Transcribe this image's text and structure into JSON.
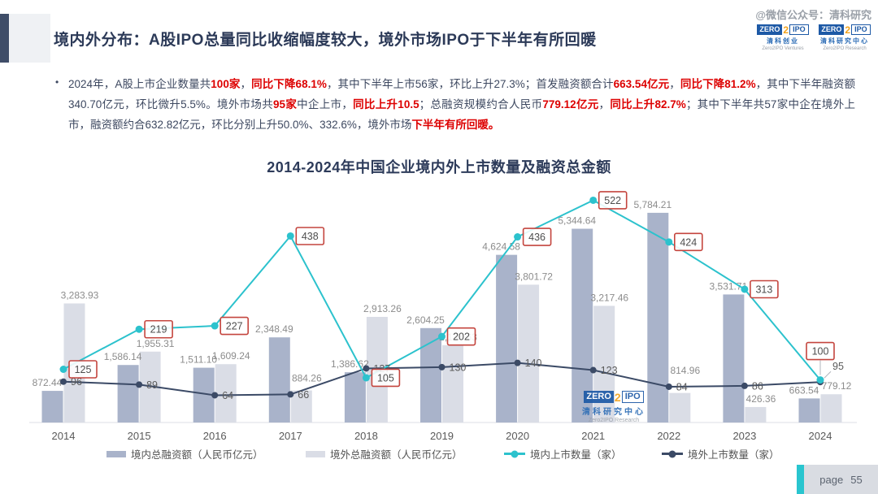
{
  "watermark": "@微信公众号：清科研究",
  "header": {
    "title": "境内外分布：A股IPO总量同比收缩幅度较大，境外市场IPO于下半年有所回暖"
  },
  "logos": {
    "ventures": {
      "zero": "ZERO",
      "two": "2",
      "ipo": "IPO",
      "cn": "清科创业",
      "en": "Zero2IPO Ventures"
    },
    "research": {
      "zero": "ZERO",
      "two": "2",
      "ipo": "IPO",
      "cn": "清科研究中心",
      "en": "Zero2IPO Research"
    }
  },
  "bullet": {
    "marker": "•",
    "segments": [
      {
        "text": "2024年，A股上市企业数量共",
        "red": false
      },
      {
        "text": "100家",
        "red": true
      },
      {
        "text": "，",
        "red": false
      },
      {
        "text": "同比下降68.1%",
        "red": true
      },
      {
        "text": "，其中下半年上市56家，环比上升27.3%；首发融资额合计",
        "red": false
      },
      {
        "text": "663.54亿元",
        "red": true
      },
      {
        "text": "，",
        "red": false
      },
      {
        "text": "同比下降81.2%",
        "red": true
      },
      {
        "text": "，其中下半年融资额340.70亿元，环比微升5.5%。境外市场共",
        "red": false
      },
      {
        "text": "95家",
        "red": true
      },
      {
        "text": "中企上市，",
        "red": false
      },
      {
        "text": "同比上升10.5",
        "red": true
      },
      {
        "text": "；总融资规模约合人民币",
        "red": false
      },
      {
        "text": "779.12亿元",
        "red": true
      },
      {
        "text": "，",
        "red": false
      },
      {
        "text": "同比上升82.7%",
        "red": true
      },
      {
        "text": "；其中下半年共57家中企在境外上市，融资额约合632.82亿元，环比分别上升50.0%、332.6%，境外市场",
        "red": false
      },
      {
        "text": "下半年有所回暖。",
        "red": true
      }
    ]
  },
  "chart_data": {
    "type": "bar+line",
    "title": "2014-2024年中国企业境内外上市数量及融资总金额",
    "categories": [
      "2014",
      "2015",
      "2016",
      "2017",
      "2018",
      "2019",
      "2020",
      "2021",
      "2022",
      "2023",
      "2024"
    ],
    "series": [
      {
        "name": "境内总融资额（人民币亿元）",
        "type": "bar",
        "color": "#a9b3ca",
        "values": [
          872.44,
          1586.14,
          1511.1,
          2348.49,
          1386.62,
          2604.25,
          4624.58,
          5344.64,
          5784.21,
          3531.71,
          663.54
        ],
        "labels": [
          "872.44",
          "1,586.14",
          "1,511.10",
          "2,348.49",
          "1,386.62",
          "2,604.25",
          "4,624.58",
          "5,344.64",
          "5,784.21",
          "3,531.71",
          "663.54"
        ]
      },
      {
        "name": "境外总融资额（人民币亿元）",
        "type": "bar",
        "color": "#dadde6",
        "values": [
          3283.93,
          1955.31,
          1609.24,
          884.26,
          2913.26,
          2133.63,
          3801.72,
          3217.46,
          814.96,
          426.36,
          779.12
        ],
        "labels": [
          "3,283.93",
          "1,955.31",
          "1,609.24",
          "884.26",
          "2,913.26",
          "2,133.63",
          "3,801.72",
          "3,217.46",
          "814.96",
          "426.36",
          "779.12"
        ]
      },
      {
        "name": "境内上市数量（家）",
        "type": "line",
        "color": "#2cc2cd",
        "boxed_labels": true,
        "label_box_border": "#c4453e",
        "values": [
          125,
          219,
          227,
          438,
          105,
          202,
          436,
          522,
          424,
          313,
          100
        ]
      },
      {
        "name": "境外上市数量（家）",
        "type": "line",
        "color": "#3b4a66",
        "boxed_labels": false,
        "values": [
          96,
          89,
          64,
          66,
          127,
          130,
          140,
          123,
          84,
          86,
          95
        ]
      }
    ],
    "legend_position": "bottom",
    "grid": false,
    "bar_axis_range": [
      0,
      5800
    ],
    "line_axis_range": [
      0,
      560
    ]
  },
  "footer": {
    "page_label": "page",
    "page_number": "55"
  }
}
